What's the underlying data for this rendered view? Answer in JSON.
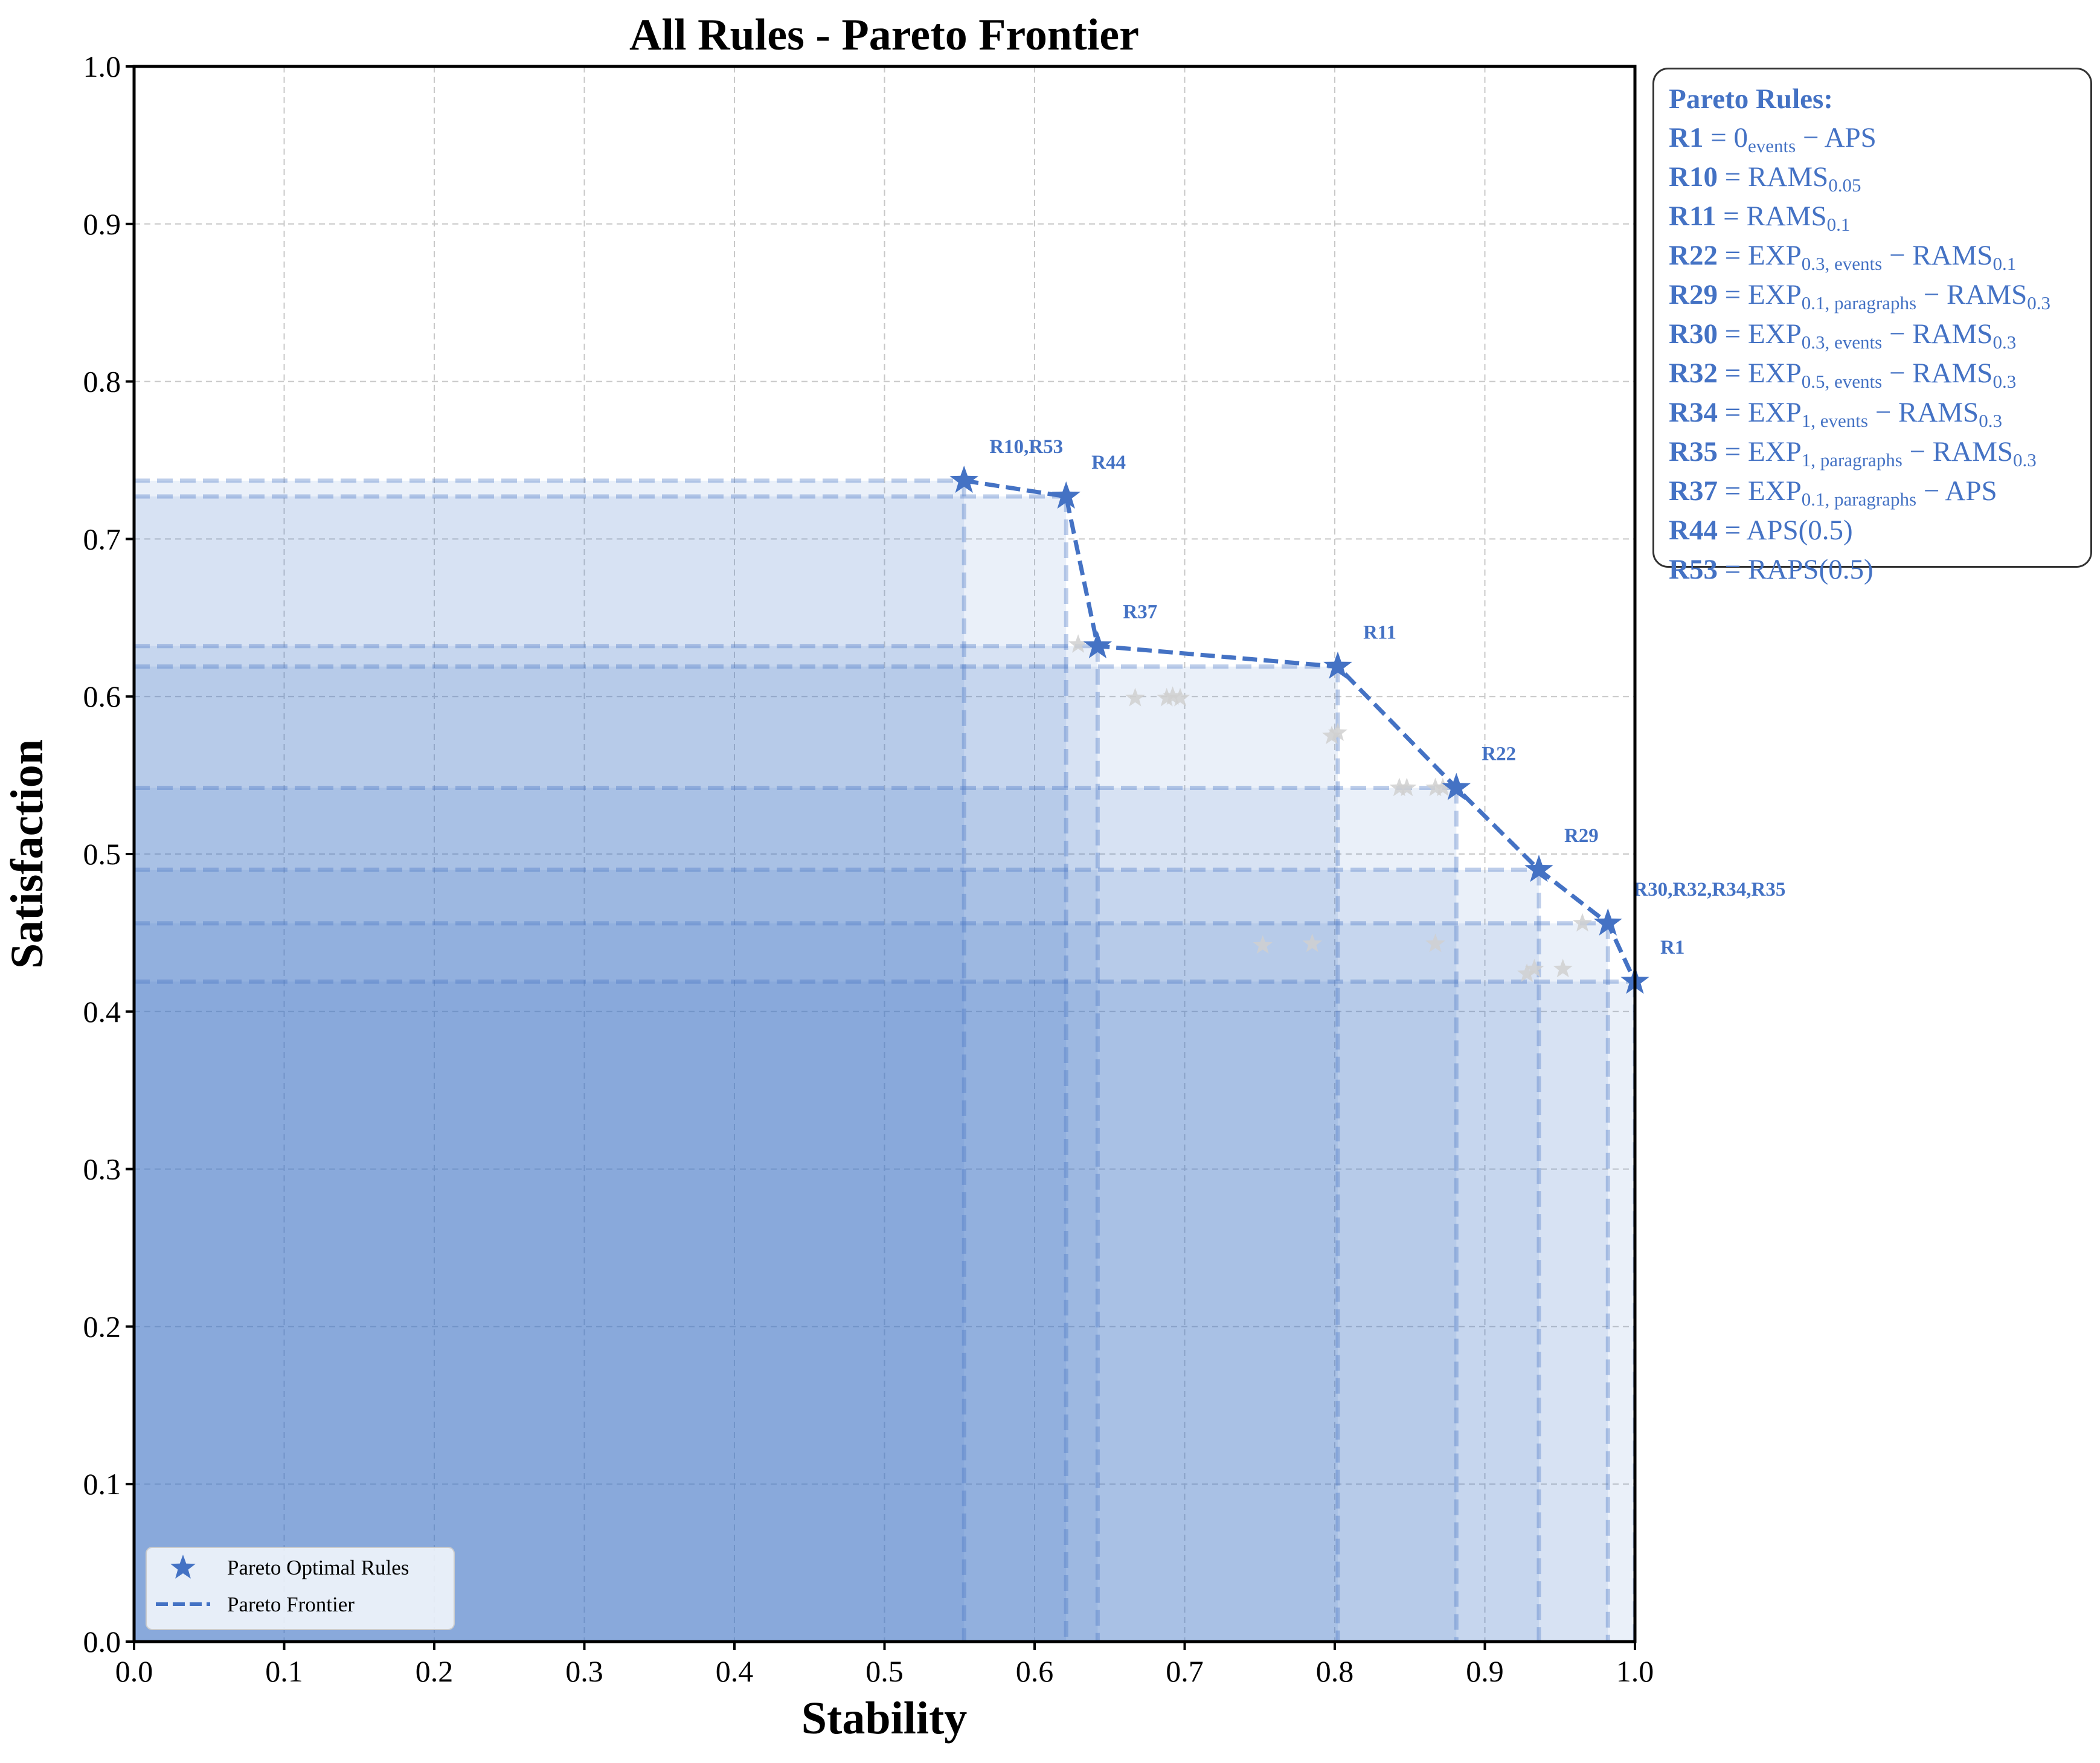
{
  "chart_data": {
    "type": "scatter",
    "title": "All Rules - Pareto Frontier",
    "xlabel": "Stability",
    "ylabel": "Satisfaction",
    "xlim": [
      0.0,
      1.0
    ],
    "ylim": [
      0.0,
      1.0
    ],
    "x_ticks": [
      "0.0",
      "0.1",
      "0.2",
      "0.3",
      "0.4",
      "0.5",
      "0.6",
      "0.7",
      "0.8",
      "0.9",
      "1.0"
    ],
    "y_ticks": [
      "0.0",
      "0.1",
      "0.2",
      "0.3",
      "0.4",
      "0.5",
      "0.6",
      "0.7",
      "0.8",
      "0.9",
      "1.0"
    ],
    "grid": true,
    "legend_position": "bottom-left",
    "colors": {
      "pareto": "#4472c4",
      "other": "#d0d0d0",
      "fill": "#4472c4",
      "grid": "#c8c8c8"
    },
    "legend": {
      "points_label": "Pareto Optimal Rules",
      "line_label": "Pareto Frontier"
    },
    "pareto_points": [
      {
        "label": "R10,R53",
        "x": 0.553,
        "y": 0.737
      },
      {
        "label": "R44",
        "x": 0.621,
        "y": 0.727
      },
      {
        "label": "R37",
        "x": 0.642,
        "y": 0.632
      },
      {
        "label": "R11",
        "x": 0.802,
        "y": 0.619
      },
      {
        "label": "R22",
        "x": 0.881,
        "y": 0.542
      },
      {
        "label": "R29",
        "x": 0.936,
        "y": 0.49
      },
      {
        "label": "R30,R32,R34,R35",
        "x": 0.982,
        "y": 0.456
      },
      {
        "label": "R1",
        "x": 1.0,
        "y": 0.419
      }
    ],
    "other_points": [
      {
        "x": 0.629,
        "y": 0.633
      },
      {
        "x": 0.667,
        "y": 0.599
      },
      {
        "x": 0.688,
        "y": 0.599
      },
      {
        "x": 0.692,
        "y": 0.6
      },
      {
        "x": 0.697,
        "y": 0.599
      },
      {
        "x": 0.798,
        "y": 0.575
      },
      {
        "x": 0.802,
        "y": 0.577
      },
      {
        "x": 0.843,
        "y": 0.542
      },
      {
        "x": 0.848,
        "y": 0.542
      },
      {
        "x": 0.867,
        "y": 0.542
      },
      {
        "x": 0.872,
        "y": 0.542
      },
      {
        "x": 0.752,
        "y": 0.442
      },
      {
        "x": 0.785,
        "y": 0.443
      },
      {
        "x": 0.867,
        "y": 0.443
      },
      {
        "x": 0.928,
        "y": 0.424
      },
      {
        "x": 0.933,
        "y": 0.427
      },
      {
        "x": 0.952,
        "y": 0.427
      },
      {
        "x": 0.965,
        "y": 0.456
      }
    ]
  },
  "rules_box": {
    "title": "Pareto Rules:",
    "rules": [
      {
        "id": "R1",
        "eq": " = ",
        "parts": [
          {
            "t": "0"
          },
          {
            "sub": "events"
          },
          {
            "t": " − APS"
          }
        ]
      },
      {
        "id": "R10",
        "eq": " = ",
        "parts": [
          {
            "t": "RAMS"
          },
          {
            "sub": "0.05"
          }
        ]
      },
      {
        "id": "R11",
        "eq": " = ",
        "parts": [
          {
            "t": "RAMS"
          },
          {
            "sub": "0.1"
          }
        ]
      },
      {
        "id": "R22",
        "eq": " = ",
        "parts": [
          {
            "t": "EXP"
          },
          {
            "sub": "0.3, events"
          },
          {
            "t": " − RAMS"
          },
          {
            "sub": "0.1"
          }
        ]
      },
      {
        "id": "R29",
        "eq": " = ",
        "parts": [
          {
            "t": "EXP"
          },
          {
            "sub": "0.1, paragraphs"
          },
          {
            "t": " − RAMS"
          },
          {
            "sub": "0.3"
          }
        ]
      },
      {
        "id": "R30",
        "eq": " = ",
        "parts": [
          {
            "t": "EXP"
          },
          {
            "sub": "0.3, events"
          },
          {
            "t": " − RAMS"
          },
          {
            "sub": "0.3"
          }
        ]
      },
      {
        "id": "R32",
        "eq": " = ",
        "parts": [
          {
            "t": "EXP"
          },
          {
            "sub": "0.5, events"
          },
          {
            "t": " − RAMS"
          },
          {
            "sub": "0.3"
          }
        ]
      },
      {
        "id": "R34",
        "eq": " = ",
        "parts": [
          {
            "t": "EXP"
          },
          {
            "sub": "1, events"
          },
          {
            "t": " − RAMS"
          },
          {
            "sub": "0.3"
          }
        ]
      },
      {
        "id": "R35",
        "eq": " = ",
        "parts": [
          {
            "t": "EXP"
          },
          {
            "sub": "1, paragraphs"
          },
          {
            "t": " − RAMS"
          },
          {
            "sub": "0.3"
          }
        ]
      },
      {
        "id": "R37",
        "eq": " = ",
        "parts": [
          {
            "t": "EXP"
          },
          {
            "sub": "0.1, paragraphs"
          },
          {
            "t": " − APS"
          }
        ]
      },
      {
        "id": "R44",
        "eq": " = ",
        "parts": [
          {
            "t": "APS(0.5)"
          }
        ]
      },
      {
        "id": "R53",
        "eq": " = ",
        "parts": [
          {
            "t": "RAPS(0.5)"
          }
        ]
      }
    ]
  }
}
